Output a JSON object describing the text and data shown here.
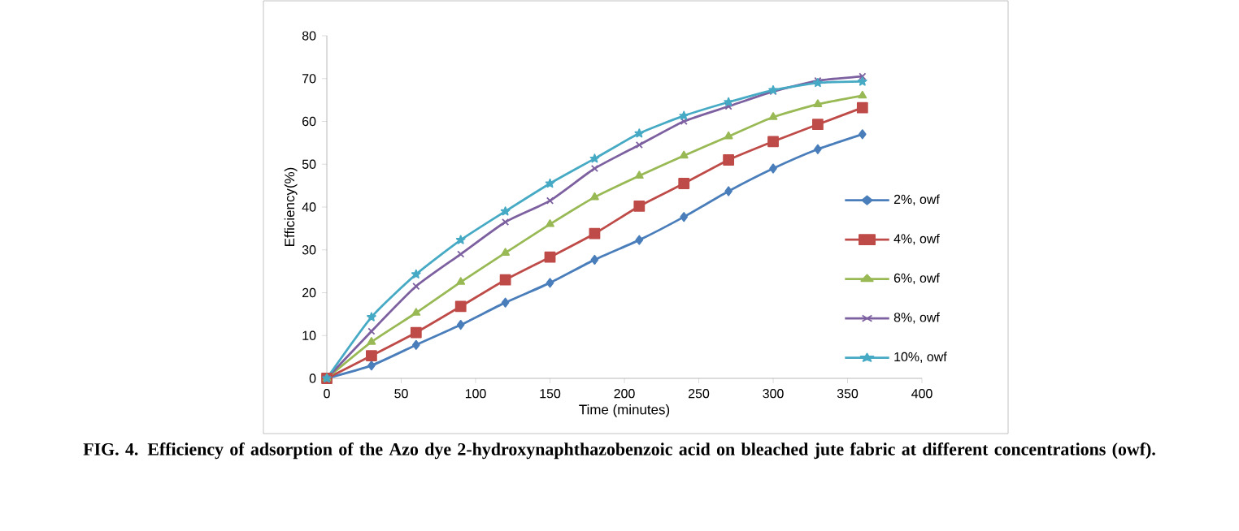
{
  "chart_data": {
    "type": "line",
    "xlabel": "Time (minutes)",
    "ylabel": "Efficiency(%)",
    "annotations": [
      "FIG. 4. Efficiency of adsorption of the Azo dye 2-hydroxynaphthazobenzoic acid on bleached jute fabric at different concentrations (owf)."
    ],
    "x": [
      0,
      30,
      60,
      90,
      120,
      150,
      180,
      210,
      240,
      270,
      300,
      330,
      360
    ],
    "xlim": [
      0,
      400
    ],
    "xticks": [
      0,
      50,
      100,
      150,
      200,
      250,
      300,
      350,
      400
    ],
    "ylim": [
      0,
      80
    ],
    "yticks": [
      0,
      10,
      20,
      30,
      40,
      50,
      60,
      70,
      80
    ],
    "grid": false,
    "legend": "right",
    "line_style": "solid",
    "series": [
      {
        "name": "2%, owf",
        "color": "#4a7ebb",
        "marker": "diamond",
        "values": [
          0,
          3,
          7.8,
          12.5,
          17.7,
          22.3,
          27.7,
          32.3,
          37.7,
          43.7,
          49,
          53.5,
          57
        ]
      },
      {
        "name": "4%, owf",
        "color": "#be4b48",
        "marker": "square",
        "values": [
          0,
          5.3,
          10.7,
          16.8,
          23,
          28.3,
          33.8,
          40.2,
          45.5,
          51,
          55.3,
          59.3,
          63.2
        ]
      },
      {
        "name": "6%, owf",
        "color": "#98b954",
        "marker": "triangle",
        "values": [
          0,
          8.5,
          15.3,
          22.5,
          29.3,
          36,
          42.3,
          47.3,
          52,
          56.5,
          61,
          64,
          66
        ]
      },
      {
        "name": "8%, owf",
        "color": "#7d60a0",
        "marker": "cross",
        "values": [
          0,
          11,
          21.5,
          29,
          36.5,
          41.5,
          49,
          54.5,
          60,
          63.5,
          67,
          69.5,
          70.5
        ]
      },
      {
        "name": "10%, owf",
        "color": "#46aac5",
        "marker": "star",
        "values": [
          0,
          14.3,
          24.3,
          32.3,
          39,
          45.5,
          51.3,
          57.2,
          61.3,
          64.5,
          67.3,
          69,
          69.3
        ]
      }
    ]
  }
}
